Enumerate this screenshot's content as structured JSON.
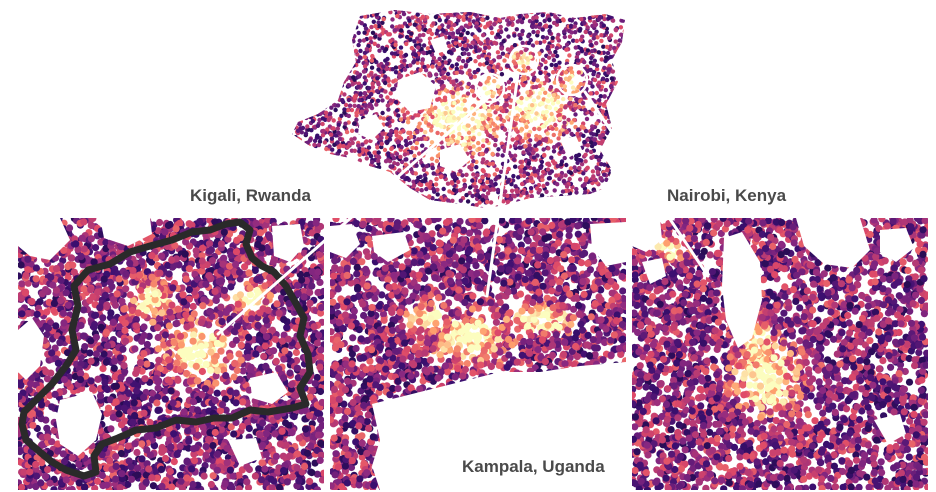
{
  "labels": {
    "kigali": "Kigali, Rwanda",
    "kampala": "Kampala, Uganda",
    "nairobi": "Nairobi, Kenya"
  },
  "colors": {
    "background": "#ffffff",
    "label_text": "#4a4a4a",
    "connector": "#ffffff",
    "border": "#2a2a2a",
    "colormap": [
      "#0d0829",
      "#3b0f70",
      "#8c2981",
      "#de4968",
      "#fe9f6d",
      "#fcfdbf"
    ]
  },
  "overview": {
    "highlight_circles": [
      "kigali",
      "kampala",
      "nairobi"
    ]
  }
}
